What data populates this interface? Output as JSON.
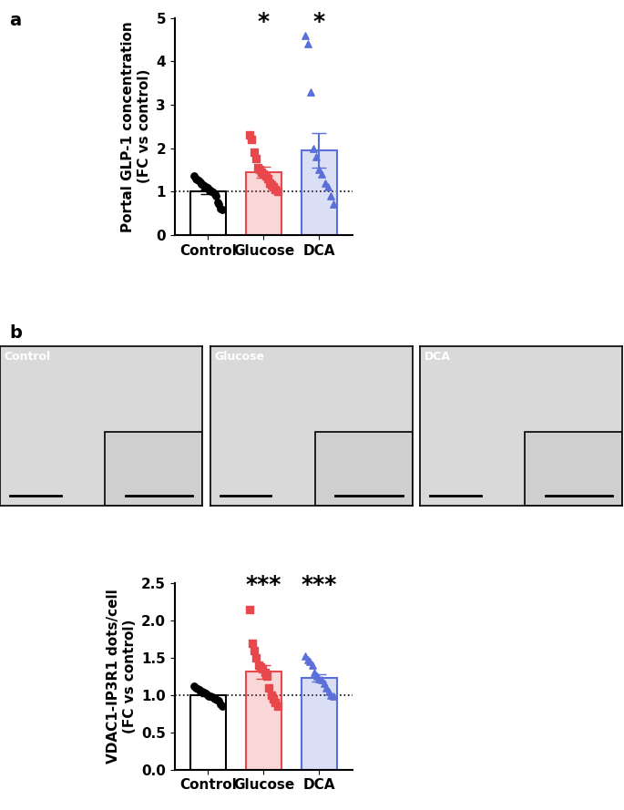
{
  "panel_labels": [
    "a",
    "b"
  ],
  "images": {
    "labels": [
      "Control",
      "Glucose",
      "DCA"
    ]
  },
  "chart_data": [
    {
      "type": "bar",
      "y_label": "Portal GLP-1 concentration\n(FC vs control)",
      "categories": [
        "Control",
        "Glucose",
        "DCA"
      ],
      "values": [
        1.0,
        1.44,
        1.94
      ],
      "errors": [
        0.05,
        0.12,
        0.4
      ],
      "points": [
        [
          1.35,
          1.3,
          1.28,
          1.25,
          1.22,
          1.18,
          1.15,
          1.12,
          1.1,
          1.08,
          1.05,
          1.02,
          1.0,
          0.98,
          0.95,
          0.9,
          0.75,
          0.72,
          0.6,
          0.58
        ],
        [
          2.3,
          2.2,
          1.9,
          1.75,
          1.55,
          1.5,
          1.45,
          1.4,
          1.35,
          1.3,
          1.2,
          1.15,
          1.1,
          1.05,
          1.0
        ],
        [
          4.6,
          4.4,
          3.3,
          2.0,
          1.8,
          1.5,
          1.4,
          1.2,
          1.1,
          0.9,
          0.7
        ]
      ],
      "colors": [
        "#000000",
        "#e8474b",
        "#5b6fd8"
      ],
      "markers": [
        "o",
        "s",
        "^"
      ],
      "significance": [
        null,
        "*",
        "*"
      ],
      "reference_line": 1,
      "ylim": [
        0,
        5
      ],
      "yticks": [
        0,
        1,
        2,
        3,
        4,
        5
      ]
    },
    {
      "type": "bar",
      "y_label": "VDAC1-IP3R1 dots/cell\n(FC vs control)",
      "categories": [
        "Control",
        "Glucose",
        "DCA"
      ],
      "values": [
        1.0,
        1.31,
        1.23
      ],
      "errors": [
        0.015,
        0.09,
        0.05
      ],
      "points": [
        [
          1.12,
          1.1,
          1.08,
          1.07,
          1.05,
          1.04,
          1.03,
          1.02,
          1.0,
          0.99,
          0.98,
          0.97,
          0.96,
          0.95,
          0.93,
          0.92,
          0.88,
          0.85
        ],
        [
          2.15,
          1.7,
          1.6,
          1.5,
          1.4,
          1.38,
          1.35,
          1.3,
          1.25,
          1.1,
          1.0,
          0.95,
          0.9,
          0.85
        ],
        [
          1.52,
          1.48,
          1.45,
          1.4,
          1.3,
          1.25,
          1.22,
          1.2,
          1.15,
          1.1,
          1.05,
          1.0,
          0.98
        ]
      ],
      "colors": [
        "#000000",
        "#e8474b",
        "#5b6fd8"
      ],
      "markers": [
        "o",
        "s",
        "^"
      ],
      "significance": [
        null,
        "***",
        "***"
      ],
      "reference_line": 1,
      "ylim": [
        0.0,
        2.5
      ],
      "yticks": [
        0.0,
        0.5,
        1.0,
        1.5,
        2.0,
        2.5
      ]
    }
  ]
}
